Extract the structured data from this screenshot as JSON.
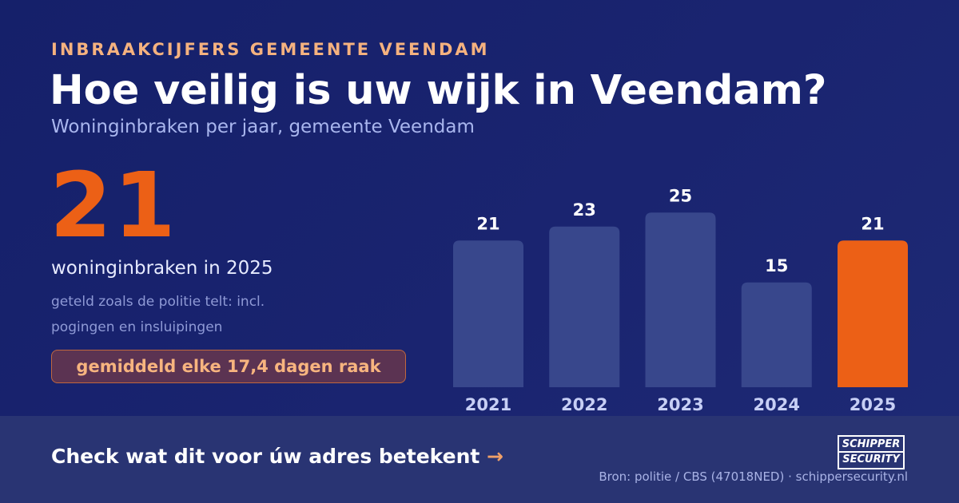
{
  "header": {
    "eyebrow": "INBRAAKCIJFERS GEMEENTE VEENDAM",
    "title": "Hoe veilig is uw wijk in Veendam?",
    "subtitle": "Woninginbraken per jaar, gemeente Veendam"
  },
  "highlight": {
    "value": "21",
    "caption": "woninginbraken in 2025",
    "note": "geteld zoals de politie telt: incl. pogingen en insluipingen",
    "pill": "gemiddeld elke 17,4 dagen raak"
  },
  "chart_data": {
    "type": "bar",
    "categories": [
      "2021",
      "2022",
      "2023",
      "2024",
      "2025"
    ],
    "values": [
      21,
      23,
      25,
      15,
      21
    ],
    "highlight_index": 4,
    "title": "",
    "xlabel": "",
    "ylabel": "",
    "ylim": [
      0,
      25
    ],
    "grid": false,
    "colors": {
      "bar": "#38478c",
      "highlight": "#ec6016"
    }
  },
  "footer": {
    "cta": "Check wat dit voor úw adres betekent",
    "cta_arrow": "→",
    "logo_line1": "SCHIPPER",
    "logo_line2": "SECURITY",
    "source": "Bron: politie / CBS (47018NED) · schippersecurity.nl"
  },
  "colors": {
    "background": "#15206a",
    "accent": "#ec6016",
    "eyebrow": "#f5b27f",
    "footer": "#293473"
  }
}
